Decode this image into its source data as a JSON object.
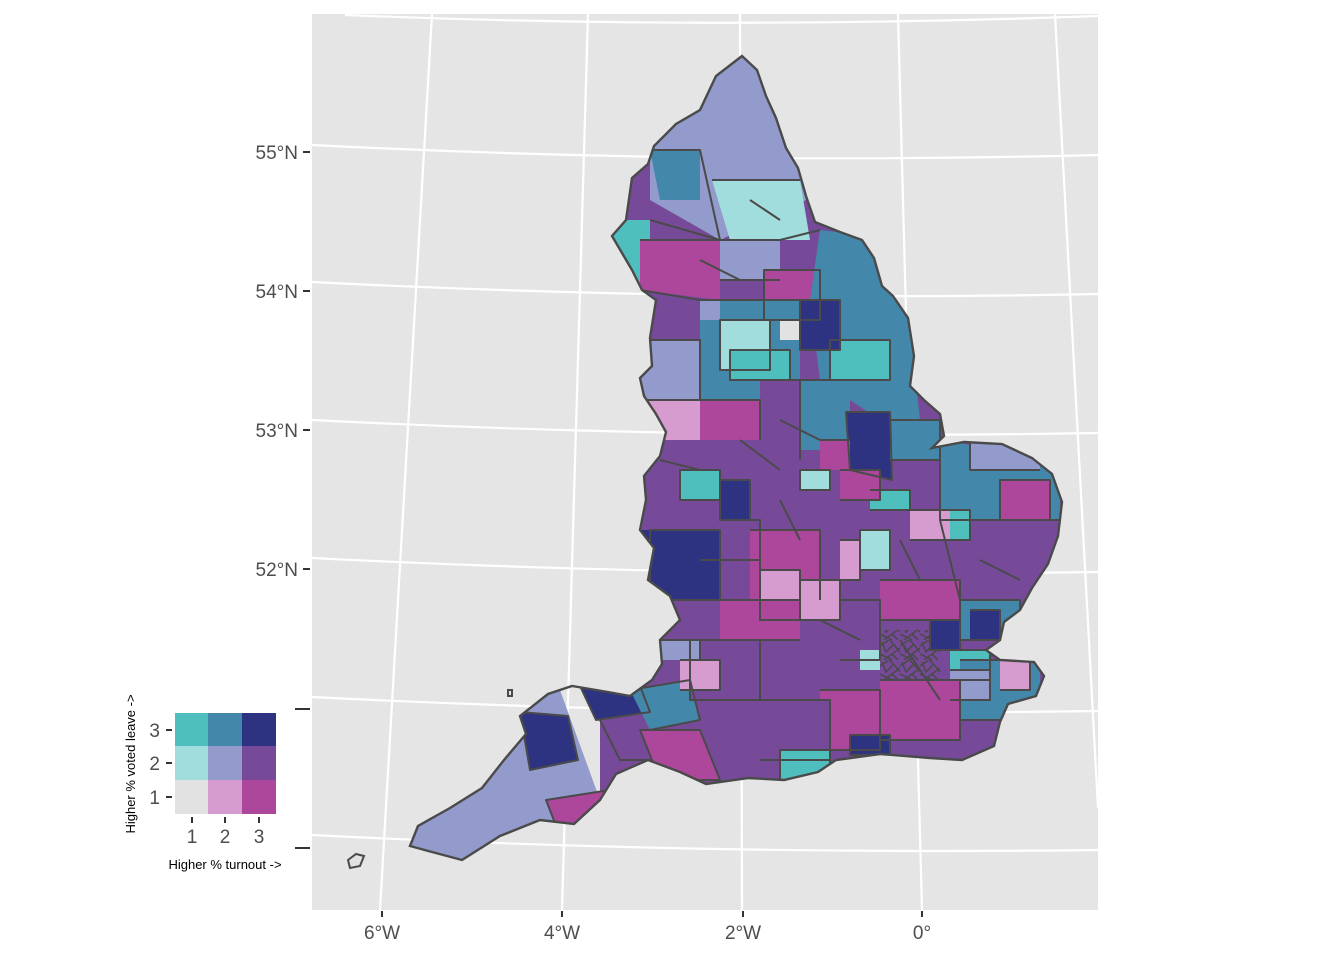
{
  "map": {
    "background": "#e5e5e5",
    "graticule_color": "#ffffff",
    "boundary_color": "#4a4a4a",
    "lat_labels": [
      "55°N",
      "54°N",
      "53°N",
      "52°N"
    ],
    "lon_labels": [
      "6°W",
      "4°W",
      "2°W",
      "0°"
    ]
  },
  "legend": {
    "x_title": "Higher % turnout ->",
    "y_title": "Higher % voted leave ->",
    "x_ticks": [
      "1",
      "2",
      "3"
    ],
    "y_ticks": [
      "1",
      "2",
      "3"
    ],
    "palette": {
      "1-1": "#e2e2e2",
      "2-1": "#d79ccf",
      "3-1": "#ac479b",
      "1-2": "#a0dddc",
      "2-2": "#929bcb",
      "3-2": "#774a99",
      "1-3": "#4fbfbd",
      "2-3": "#4387ab",
      "3-3": "#2d3381"
    }
  }
}
